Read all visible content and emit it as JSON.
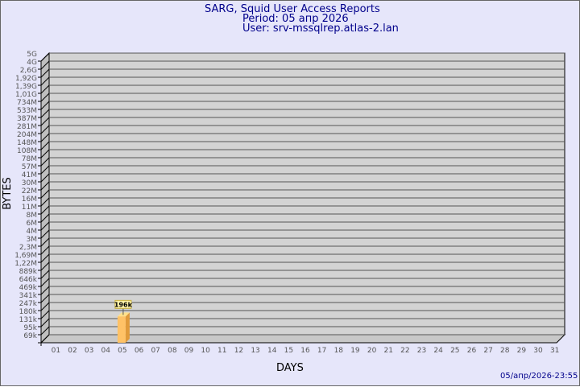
{
  "chart_data": {
    "type": "bar",
    "title": "SARG, Squid User Access Reports",
    "period": "Period: 05 апр 2026",
    "user": "User: srv-mssqlrep.atlas-2.lan",
    "xlabel": "DAYS",
    "ylabel": "BYTES",
    "footer": "05/апр/2026-23:55",
    "categories": [
      "01",
      "02",
      "03",
      "04",
      "05",
      "06",
      "07",
      "08",
      "09",
      "10",
      "11",
      "12",
      "13",
      "14",
      "15",
      "16",
      "17",
      "18",
      "19",
      "20",
      "21",
      "22",
      "23",
      "24",
      "25",
      "26",
      "27",
      "28",
      "29",
      "30",
      "31"
    ],
    "y_ticks": [
      "5G",
      "4G",
      "2,6G",
      "1,92G",
      "1,39G",
      "1,01G",
      "734M",
      "533M",
      "387M",
      "281M",
      "204M",
      "148M",
      "108M",
      "78M",
      "57M",
      "41M",
      "30M",
      "22M",
      "16M",
      "11M",
      "8M",
      "6M",
      "4M",
      "3M",
      "2,3M",
      "1,69M",
      "1,22M",
      "889k",
      "646k",
      "469k",
      "341k",
      "247k",
      "180k",
      "131k",
      "95k",
      "69k"
    ],
    "y_scale": "log",
    "series": [
      {
        "values": [
          null,
          null,
          null,
          null,
          196000,
          null,
          null,
          null,
          null,
          null,
          null,
          null,
          null,
          null,
          null,
          null,
          null,
          null,
          null,
          null,
          null,
          null,
          null,
          null,
          null,
          null,
          null,
          null,
          null,
          null,
          null
        ],
        "labels": {
          "4": "196k"
        }
      }
    ],
    "colors": {
      "bar_front": "#ffc266",
      "bar_side": "#e09a3a",
      "bar_top": "#ffe08a",
      "plot_bg": "#d3d3d3",
      "page_bg": "#e6e6fa",
      "title": "#00008b"
    },
    "grid": true
  }
}
